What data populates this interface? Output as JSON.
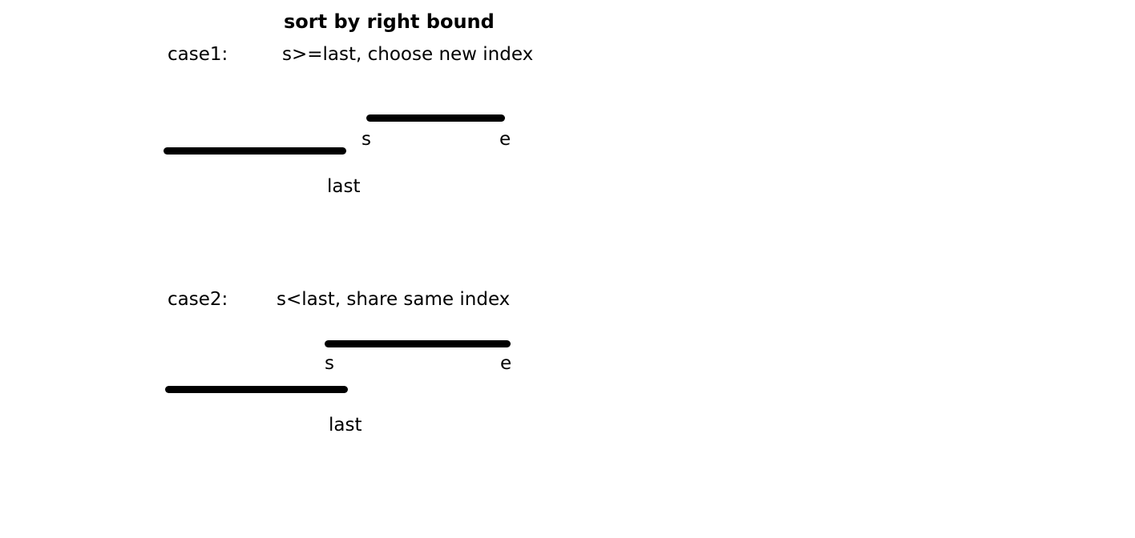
{
  "title": "sort by right bound",
  "case1": {
    "label": "case1:",
    "description": "s>=last, choose new index",
    "start_label": "s",
    "end_label": "e",
    "last_label": "last"
  },
  "case2": {
    "label": "case2:",
    "description": "s<last, share same index",
    "start_label": "s",
    "end_label": "e",
    "last_label": "last"
  }
}
